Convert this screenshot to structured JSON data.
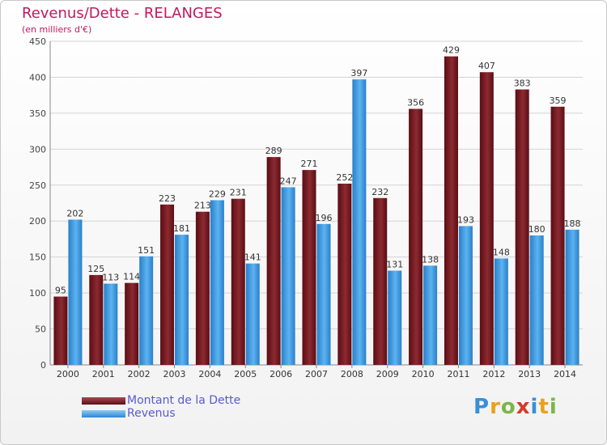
{
  "chart_data": {
    "type": "bar",
    "title": "Revenus/Dette - RELANGES",
    "subtitle": "(en milliers d'€)",
    "categories": [
      "2000",
      "2001",
      "2002",
      "2003",
      "2004",
      "2005",
      "2006",
      "2007",
      "2008",
      "2009",
      "2010",
      "2011",
      "2012",
      "2013",
      "2014"
    ],
    "series": [
      {
        "name": "Montant de la Dette",
        "color": "#7a1a22",
        "values": [
          95,
          125,
          114,
          223,
          213,
          231,
          289,
          271,
          252,
          232,
          356,
          429,
          407,
          383,
          359
        ]
      },
      {
        "name": "Revenus",
        "color": "#3d9ee6",
        "values": [
          202,
          113,
          151,
          181,
          229,
          141,
          247,
          196,
          397,
          131,
          138,
          193,
          148,
          180,
          188
        ]
      }
    ],
    "ylim": [
      0,
      450
    ],
    "yticks": [
      0,
      50,
      100,
      150,
      200,
      250,
      300,
      350,
      400,
      450
    ],
    "grid": true,
    "legend": "bottom-left"
  },
  "logo": {
    "text": "Proxiti"
  }
}
